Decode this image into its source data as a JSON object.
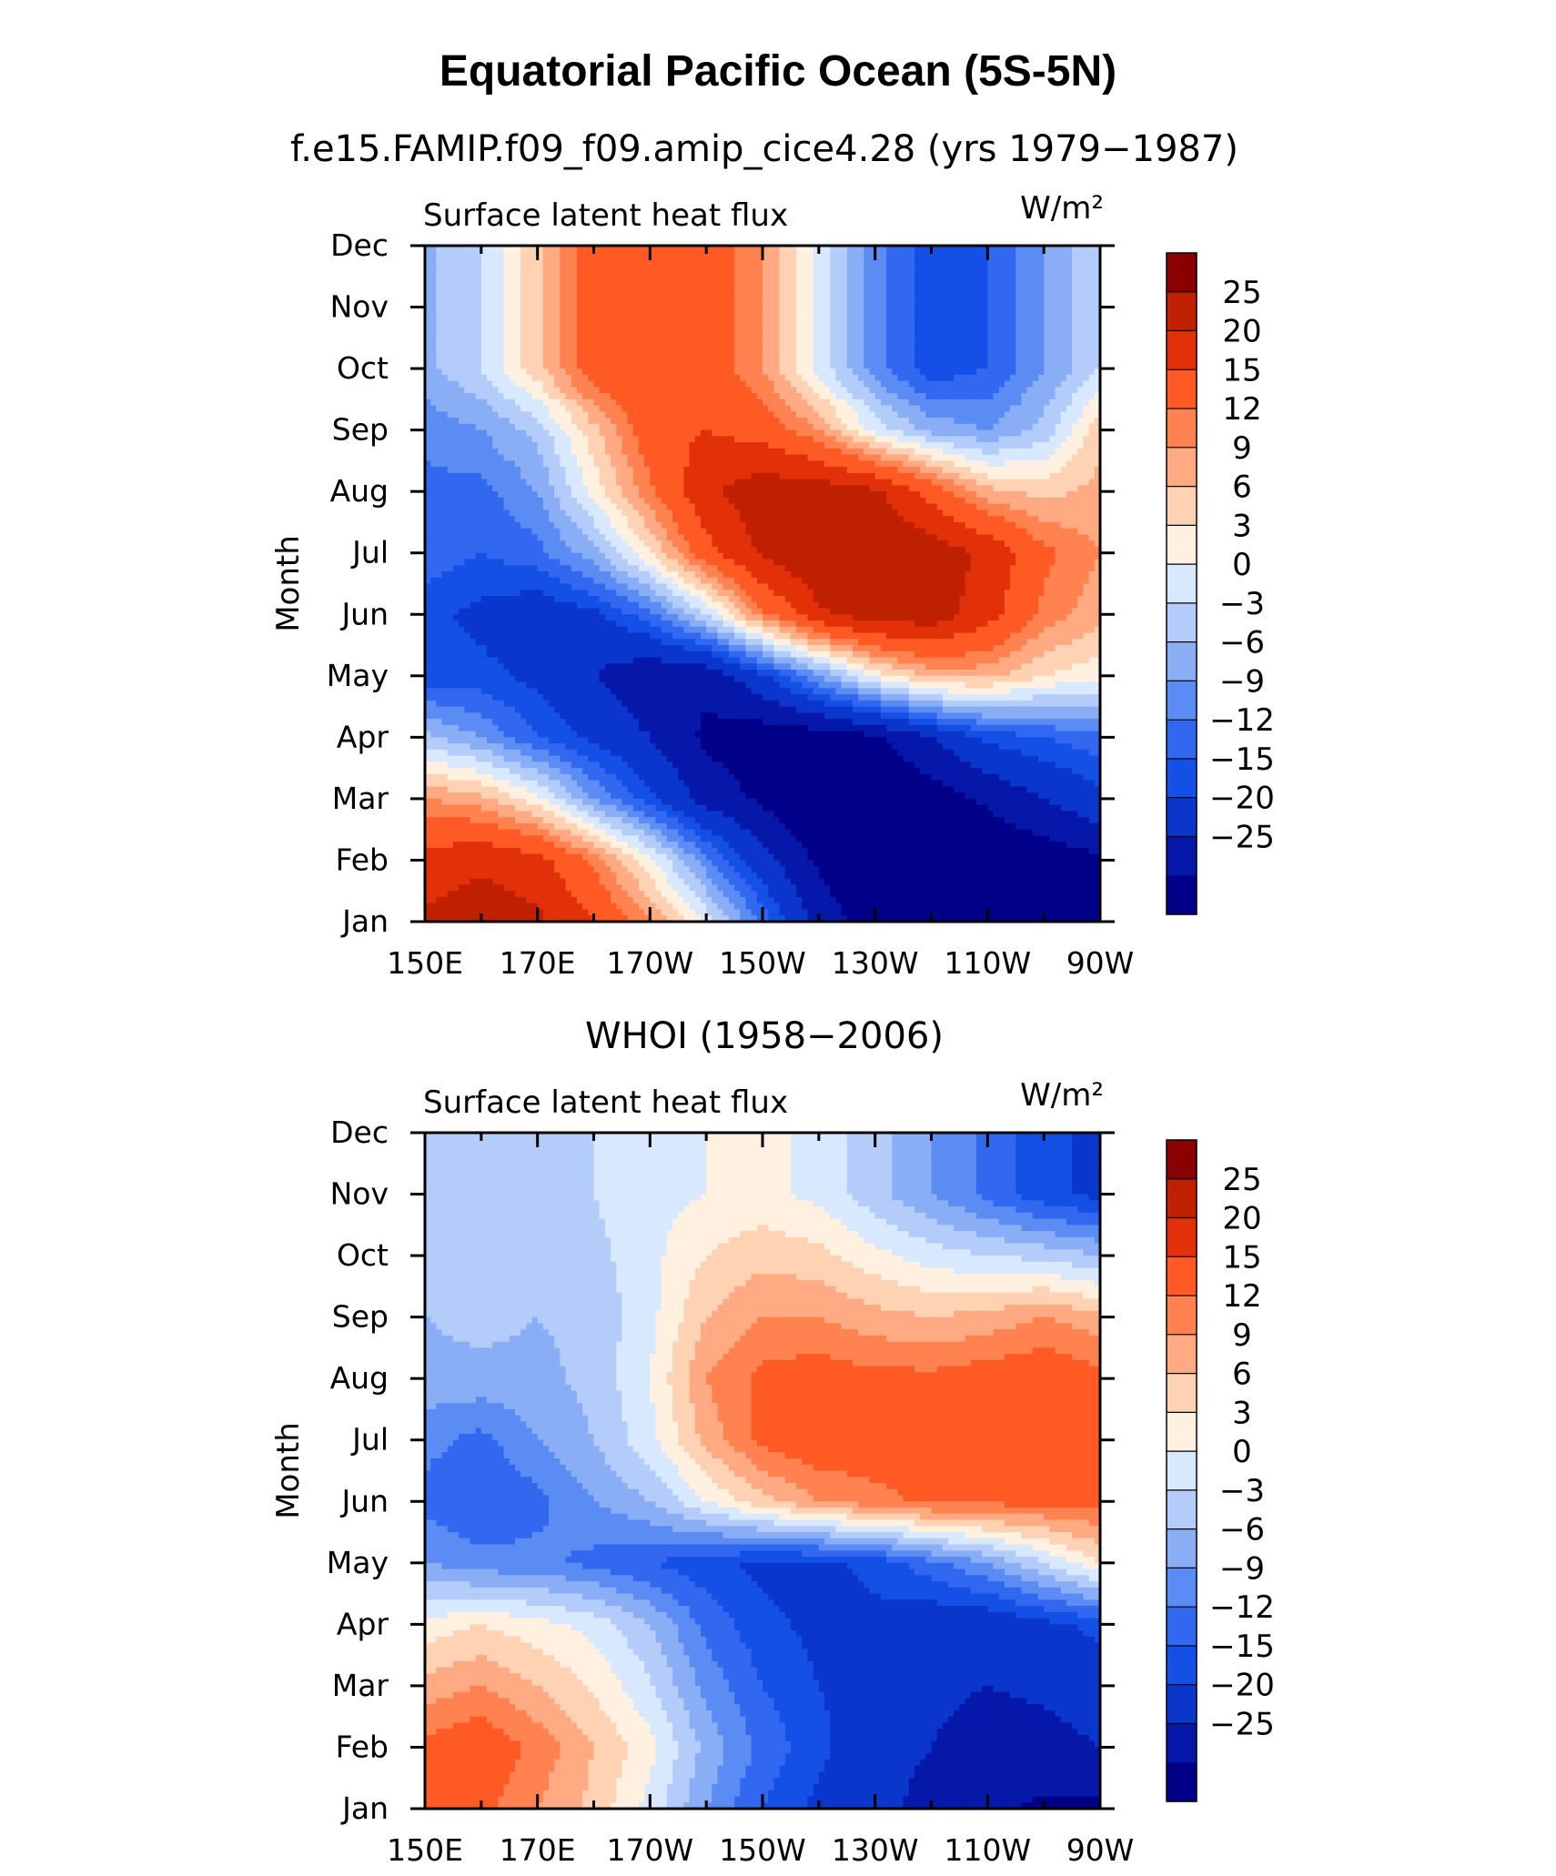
{
  "figure": {
    "title": "Equatorial Pacific Ocean (5S-5N)",
    "subtitles": [
      "f.e15.FAMIP.f09_f09.amip_cice4.28 (yrs 1979−1987)",
      "WHOI (1958−2006)"
    ]
  },
  "colors": [
    "#000088",
    "#0618AA",
    "#0A36CC",
    "#1450E6",
    "#3268F0",
    "#5A8CF4",
    "#8AAEF6",
    "#B4CCFA",
    "#D8E8FE",
    "#FFF0E0",
    "#FFD2B4",
    "#FFAA82",
    "#FF8250",
    "#FF5A24",
    "#E23008",
    "#BE2000",
    "#8A0000"
  ],
  "chart_data": [
    {
      "type": "heatmap",
      "plot_title": "Surface latent heat flux",
      "units": "W/m²",
      "xlabel": "",
      "ylabel": "Month",
      "x_ticks": [
        "150E",
        "170E",
        "170W",
        "150W",
        "130W",
        "110W",
        "90W"
      ],
      "x_range": [
        150,
        270
      ],
      "y_ticks": [
        "Jan",
        "Feb",
        "Mar",
        "Apr",
        "May",
        "Jun",
        "Jul",
        "Aug",
        "Sep",
        "Oct",
        "Nov",
        "Dec"
      ],
      "levels": [
        -25,
        -20,
        -15,
        -12,
        -9,
        -6,
        -3,
        0,
        3,
        6,
        9,
        12,
        15,
        20,
        25
      ],
      "level_labels": [
        "25",
        "20",
        "15",
        "12",
        "9",
        "6",
        "3",
        "0",
        "−3",
        "−6",
        "−9",
        "−12",
        "−15",
        "−20",
        "−25"
      ],
      "x": [
        150,
        160,
        170,
        180,
        190,
        200,
        210,
        220,
        230,
        240,
        250,
        260,
        270
      ],
      "z": [
        [
          26,
          28,
          26,
          20,
          12,
          2,
          -10,
          -22,
          -28,
          -30,
          -30,
          -28,
          -26
        ],
        [
          22,
          24,
          22,
          14,
          4,
          -8,
          -18,
          -26,
          -30,
          -32,
          -30,
          -28,
          -26
        ],
        [
          12,
          10,
          4,
          -6,
          -14,
          -22,
          -26,
          -30,
          -30,
          -28,
          -24,
          -20,
          -16
        ],
        [
          -2,
          -6,
          -12,
          -16,
          -20,
          -26,
          -28,
          -28,
          -26,
          -20,
          -14,
          -12,
          -10
        ],
        [
          -14,
          -14,
          -16,
          -20,
          -24,
          -24,
          -16,
          -6,
          4,
          10,
          10,
          6,
          4
        ],
        [
          -14,
          -16,
          -18,
          -16,
          -10,
          0,
          14,
          24,
          28,
          28,
          22,
          14,
          10
        ],
        [
          -10,
          -12,
          -10,
          -4,
          6,
          18,
          26,
          30,
          30,
          28,
          24,
          16,
          12
        ],
        [
          -10,
          -10,
          -6,
          4,
          14,
          24,
          28,
          28,
          26,
          18,
          10,
          8,
          10
        ],
        [
          -8,
          -6,
          -2,
          8,
          18,
          20,
          18,
          12,
          2,
          -4,
          -6,
          -2,
          8
        ],
        [
          -4,
          0,
          8,
          18,
          20,
          18,
          12,
          2,
          -8,
          -14,
          -12,
          -6,
          0
        ]
      ],
      "y": [
        1,
        2,
        3,
        4,
        5,
        6,
        7,
        8,
        9,
        10
      ]
    },
    {
      "type": "heatmap",
      "plot_title": "Surface latent heat flux",
      "units": "W/m²",
      "xlabel": "",
      "ylabel": "Month",
      "x_ticks": [
        "150E",
        "170E",
        "170W",
        "150W",
        "130W",
        "110W",
        "90W"
      ],
      "x_range": [
        150,
        270
      ],
      "y_ticks": [
        "Jan",
        "Feb",
        "Mar",
        "Apr",
        "May",
        "Jun",
        "Jul",
        "Aug",
        "Sep",
        "Oct",
        "Nov",
        "Dec"
      ],
      "levels": [
        -25,
        -20,
        -15,
        -12,
        -9,
        -6,
        -3,
        0,
        3,
        6,
        9,
        12,
        15,
        20,
        25
      ],
      "level_labels": [
        "25",
        "20",
        "15",
        "12",
        "9",
        "6",
        "3",
        "0",
        "−3",
        "−6",
        "−9",
        "−12",
        "−15",
        "−20",
        "−25"
      ],
      "x": [
        150,
        160,
        170,
        180,
        190,
        200,
        210,
        220,
        230,
        240,
        250,
        260,
        270
      ],
      "z": [
        [
          16,
          16,
          12,
          8,
          2,
          -6,
          -12,
          -16,
          -18,
          -22,
          -24,
          -26,
          -26
        ],
        [
          16,
          18,
          14,
          9,
          4,
          -4,
          -10,
          -14,
          -18,
          -20,
          -22,
          -22,
          -20
        ],
        [
          4,
          6,
          4,
          2,
          -3,
          -10,
          -14,
          -16,
          -16,
          -18,
          -18,
          -16,
          -14
        ],
        [
          -6,
          -8,
          -8,
          -10,
          -12,
          -14,
          -16,
          -16,
          -14,
          -10,
          -6,
          0,
          6
        ],
        [
          -10,
          -12,
          -10,
          -6,
          -3,
          3,
          8,
          12,
          14,
          16,
          16,
          16,
          16
        ],
        [
          -8,
          -10,
          -6,
          -3,
          2,
          10,
          16,
          18,
          17,
          16,
          17,
          18,
          18
        ],
        [
          -4,
          -4,
          -4,
          -2,
          3,
          12,
          16,
          17,
          16,
          16,
          17,
          18,
          16
        ],
        [
          -3,
          -2,
          -3,
          -2,
          2,
          9,
          12,
          12,
          10,
          9,
          10,
          12,
          10
        ],
        [
          -2,
          -2,
          -1,
          0,
          2,
          3,
          4,
          2,
          -2,
          -6,
          -10,
          -14,
          -16
        ]
      ],
      "y": [
        1,
        2,
        4,
        5,
        6,
        7,
        8,
        9,
        11
      ]
    }
  ]
}
